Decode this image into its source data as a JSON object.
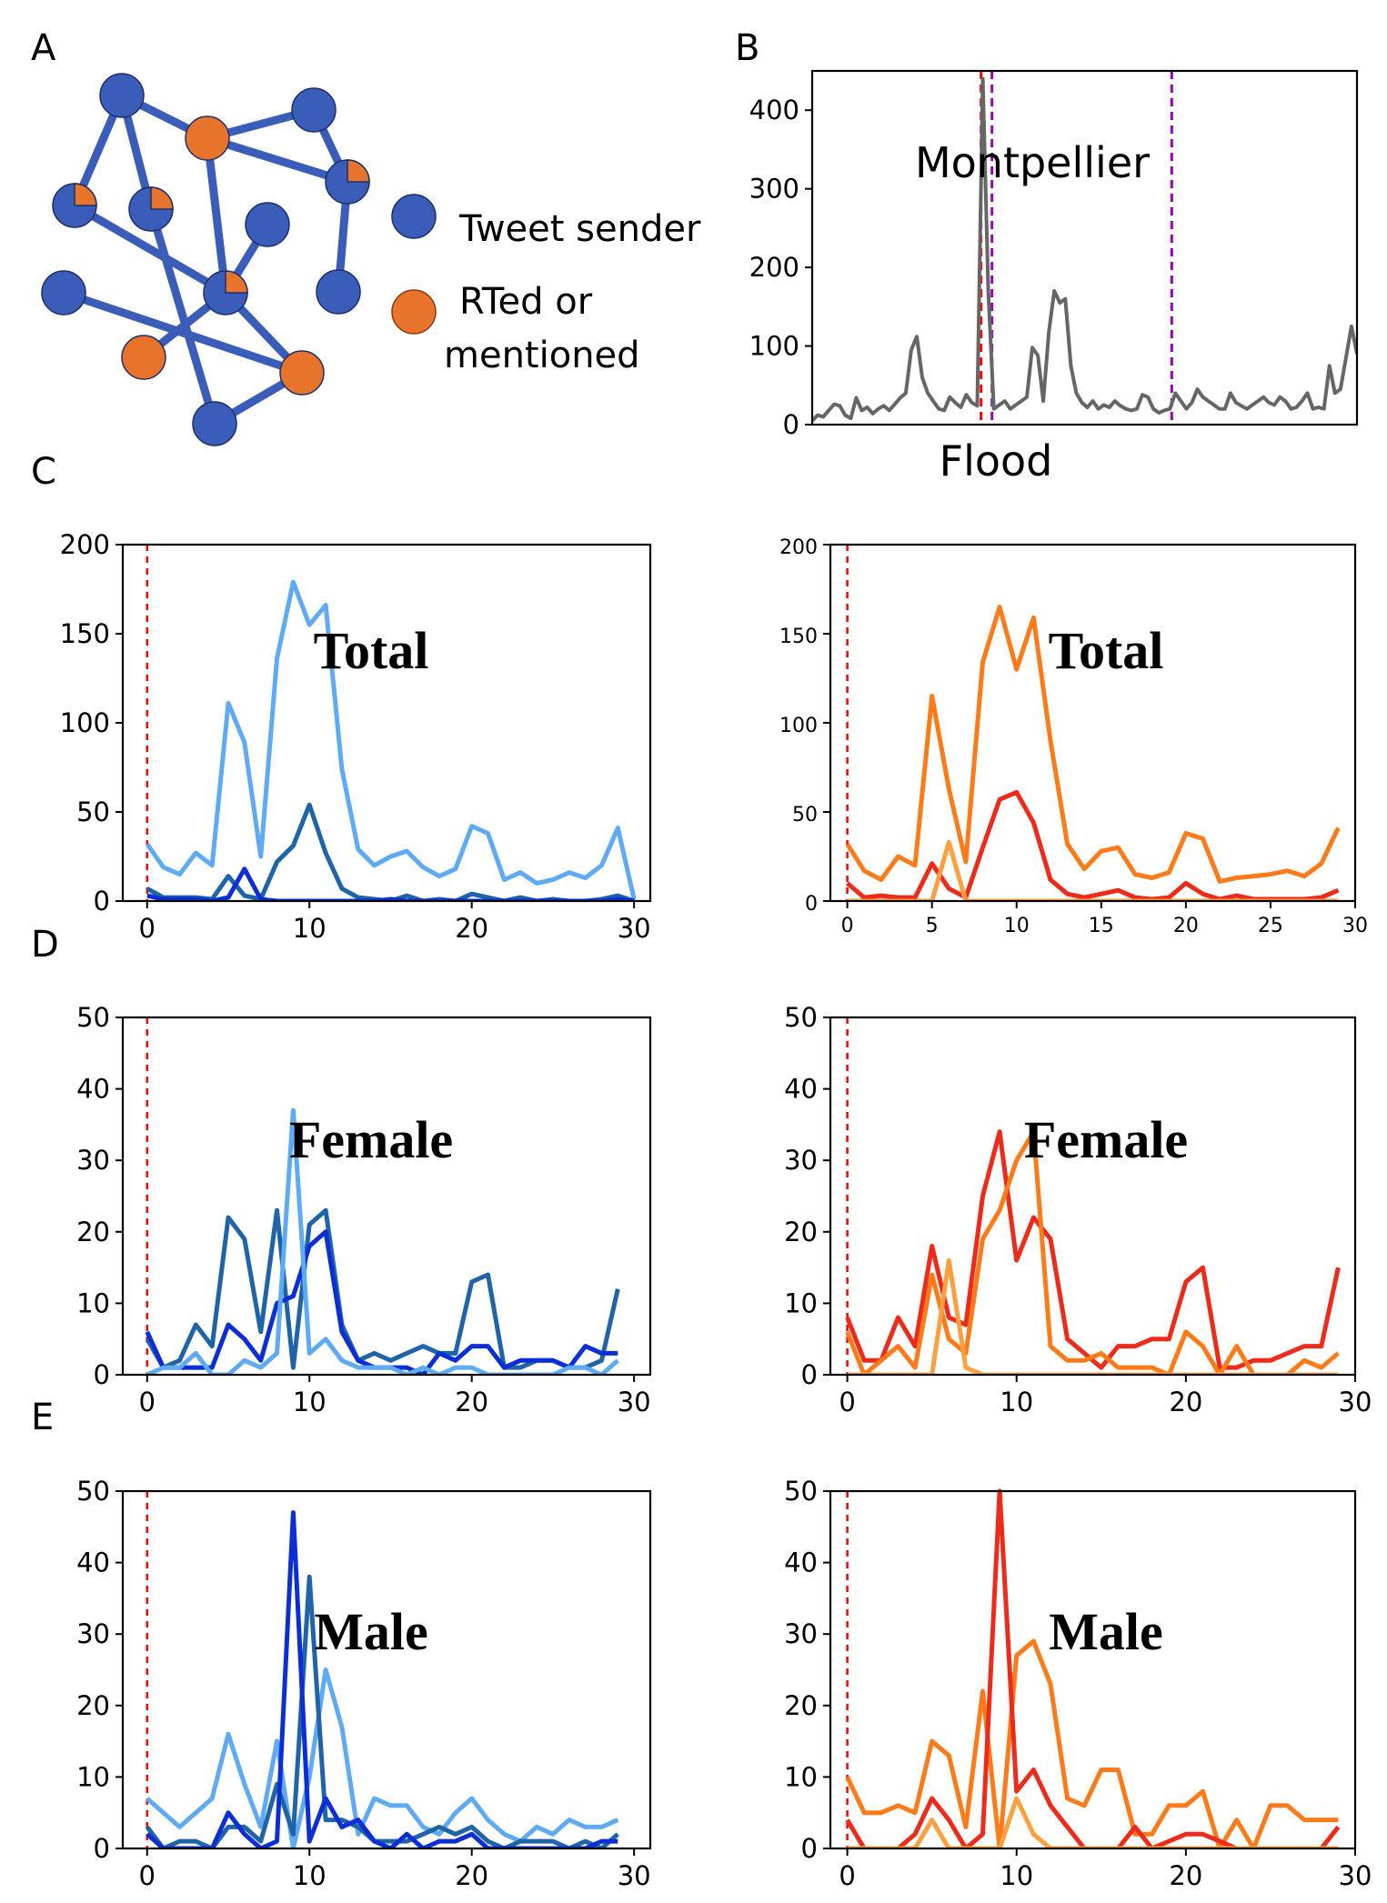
{
  "panel_letters": {
    "a": "A",
    "b": "B",
    "c": "C",
    "d": "D",
    "e": "E"
  },
  "legend": {
    "sender_label": "Tweet sender",
    "rted_line1": "RTed or",
    "rted_line2": "mentioned",
    "sender_color": "#3a5dba",
    "rted_color": "#e8732a"
  },
  "colors": {
    "blue_light": "#5eaaf5",
    "blue_mid": "#1f64a8",
    "blue_dark": "#0c2ed6",
    "orange_mid": "#ff7a18",
    "red": "#ee2a1a",
    "orange_light": "#ffa040",
    "event_red": "#ff0000",
    "event_purple": "#9900bb",
    "gray": "#666666"
  },
  "chart_data": [
    {
      "id": "B",
      "type": "line",
      "title": "",
      "annotation": "Montpellier",
      "xlabel": "Flood",
      "ylabel": "",
      "ylim": [
        0,
        450
      ],
      "yticks": [
        0,
        100,
        200,
        300,
        400
      ],
      "xlim": [
        0,
        100
      ],
      "event_lines": [
        {
          "x": 31,
          "color": "red"
        },
        {
          "x": 33,
          "color": "purple"
        },
        {
          "x": 66,
          "color": "purple"
        }
      ],
      "series": [
        {
          "values": [
            5,
            12,
            10,
            18,
            26,
            24,
            12,
            8,
            34,
            18,
            22,
            14,
            20,
            24,
            18,
            26,
            34,
            40,
            95,
            112,
            60,
            40,
            30,
            20,
            18,
            35,
            28,
            22,
            38,
            28,
            24,
            440,
            170,
            20,
            25,
            30,
            20,
            25,
            30,
            35,
            98,
            88,
            30,
            118,
            170,
            155,
            160,
            75,
            40,
            28,
            22,
            30,
            20,
            25,
            22,
            30,
            24,
            20,
            18,
            20,
            38,
            35,
            20,
            15,
            18,
            20,
            40,
            30,
            20,
            28,
            45,
            35,
            30,
            25,
            20,
            20,
            40,
            28,
            24,
            20,
            25,
            30,
            35,
            28,
            25,
            35,
            30,
            20,
            22,
            30,
            40,
            20,
            22,
            20,
            75,
            40,
            45,
            85,
            125,
            90
          ]
        }
      ]
    },
    {
      "id": "C-left",
      "type": "line",
      "title": "",
      "annotation": "Total",
      "xlim": [
        -1.5,
        31
      ],
      "ylim": [
        0,
        200
      ],
      "xticks": [
        0,
        10,
        20,
        30
      ],
      "yticks": [
        0,
        50,
        100,
        150,
        200
      ],
      "x": [
        0,
        1,
        2,
        3,
        4,
        5,
        6,
        7,
        8,
        9,
        10,
        11,
        12,
        13,
        14,
        15,
        16,
        17,
        18,
        19,
        20,
        21,
        22,
        23,
        24,
        25,
        26,
        27,
        28,
        29,
        30
      ],
      "series": [
        {
          "color_key": "blue_light",
          "values": [
            32,
            19,
            15,
            27,
            20,
            111,
            89,
            25,
            136,
            179,
            155,
            166,
            74,
            29,
            20,
            25,
            28,
            19,
            14,
            18,
            42,
            38,
            12,
            16,
            10,
            12,
            16,
            13,
            20,
            41,
            1
          ]
        },
        {
          "color_key": "blue_mid",
          "values": [
            7,
            2,
            2,
            2,
            1,
            14,
            3,
            1,
            22,
            31,
            54,
            27,
            7,
            2,
            1,
            0,
            3,
            0,
            1,
            0,
            4,
            2,
            0,
            2,
            0,
            1,
            0,
            0,
            1,
            3,
            0
          ]
        },
        {
          "color_key": "blue_dark",
          "values": [
            3,
            1,
            1,
            1,
            0,
            2,
            18,
            1,
            0,
            0,
            0,
            0,
            0,
            0,
            0,
            1,
            0,
            0,
            0,
            0,
            0,
            0,
            0,
            0,
            0,
            0,
            0,
            0,
            0,
            1,
            0
          ]
        }
      ]
    },
    {
      "id": "C-right",
      "type": "line",
      "title": "",
      "annotation": "Total",
      "xlim": [
        -1,
        30
      ],
      "ylim": [
        0,
        200
      ],
      "xticks": [
        0,
        5,
        10,
        15,
        20,
        25,
        30
      ],
      "yticks": [
        0,
        50,
        100,
        150,
        200
      ],
      "x": [
        0,
        1,
        2,
        3,
        4,
        5,
        6,
        7,
        8,
        9,
        10,
        11,
        12,
        13,
        14,
        15,
        16,
        17,
        18,
        19,
        20,
        21,
        22,
        23,
        24,
        25,
        26,
        27,
        28,
        29
      ],
      "series": [
        {
          "color_key": "orange_mid",
          "values": [
            32,
            17,
            12,
            25,
            20,
            115,
            63,
            22,
            134,
            165,
            130,
            159,
            90,
            32,
            18,
            28,
            30,
            15,
            13,
            16,
            38,
            35,
            11,
            13,
            14,
            15,
            17,
            14,
            21,
            41
          ]
        },
        {
          "color_key": "red",
          "values": [
            10,
            2,
            3,
            2,
            2,
            21,
            7,
            2,
            30,
            57,
            61,
            44,
            12,
            4,
            2,
            4,
            6,
            2,
            1,
            2,
            10,
            4,
            1,
            3,
            1,
            1,
            1,
            1,
            2,
            6
          ]
        },
        {
          "color_key": "orange_light",
          "values": [
            0,
            0,
            0,
            0,
            0,
            0,
            33,
            0,
            0,
            0,
            0,
            0,
            0,
            0,
            0,
            0,
            0,
            0,
            0,
            0,
            0,
            0,
            0,
            0,
            0,
            0,
            0,
            0,
            0,
            0
          ]
        }
      ]
    },
    {
      "id": "D-left",
      "type": "line",
      "title": "",
      "annotation": "Female",
      "xlim": [
        -1.5,
        31
      ],
      "ylim": [
        0,
        50
      ],
      "xticks": [
        0,
        10,
        20,
        30
      ],
      "yticks": [
        0,
        10,
        20,
        30,
        40,
        50
      ],
      "x": [
        0,
        1,
        2,
        3,
        4,
        5,
        6,
        7,
        8,
        9,
        10,
        11,
        12,
        13,
        14,
        15,
        16,
        17,
        18,
        19,
        20,
        21,
        22,
        23,
        24,
        25,
        26,
        27,
        28,
        29
      ],
      "series": [
        {
          "color_key": "blue_mid",
          "values": [
            5,
            1,
            2,
            7,
            4,
            22,
            19,
            6,
            23,
            1,
            21,
            23,
            7,
            2,
            3,
            2,
            3,
            4,
            3,
            3,
            13,
            14,
            1,
            1,
            2,
            2,
            1,
            1,
            2,
            12
          ]
        },
        {
          "color_key": "blue_dark",
          "values": [
            6,
            1,
            1,
            1,
            1,
            7,
            5,
            2,
            10,
            11,
            18,
            20,
            6,
            2,
            1,
            1,
            1,
            0,
            3,
            2,
            4,
            4,
            1,
            2,
            2,
            2,
            1,
            4,
            3,
            3
          ]
        },
        {
          "color_key": "blue_light",
          "values": [
            0,
            1,
            1,
            3,
            0,
            0,
            2,
            1,
            3,
            37,
            3,
            5,
            2,
            1,
            1,
            1,
            0,
            1,
            0,
            1,
            1,
            0,
            0,
            0,
            0,
            0,
            1,
            1,
            0,
            2
          ]
        }
      ]
    },
    {
      "id": "D-right",
      "type": "line",
      "title": "",
      "annotation": "Female",
      "xlim": [
        -1,
        30
      ],
      "ylim": [
        0,
        50
      ],
      "xticks": [
        0,
        10,
        20,
        30
      ],
      "yticks": [
        0,
        10,
        20,
        30,
        40,
        50
      ],
      "x": [
        0,
        1,
        2,
        3,
        4,
        5,
        6,
        7,
        8,
        9,
        10,
        11,
        12,
        13,
        14,
        15,
        16,
        17,
        18,
        19,
        20,
        21,
        22,
        23,
        24,
        25,
        26,
        27,
        28,
        29
      ],
      "series": [
        {
          "color_key": "red",
          "values": [
            8,
            2,
            2,
            8,
            4,
            18,
            8,
            7,
            25,
            34,
            16,
            22,
            19,
            5,
            3,
            1,
            4,
            4,
            5,
            5,
            13,
            15,
            1,
            1,
            2,
            2,
            3,
            4,
            4,
            15
          ]
        },
        {
          "color_key": "orange_mid",
          "values": [
            6,
            0,
            2,
            4,
            1,
            14,
            5,
            3,
            19,
            23,
            30,
            34,
            4,
            2,
            2,
            3,
            1,
            1,
            1,
            0,
            6,
            4,
            0,
            4,
            0,
            0,
            0,
            2,
            1,
            3
          ]
        },
        {
          "color_key": "orange_light",
          "values": [
            0,
            0,
            0,
            0,
            0,
            0,
            16,
            1,
            0,
            0,
            0,
            0,
            0,
            0,
            0,
            0,
            0,
            0,
            0,
            0,
            0,
            0,
            0,
            0,
            0,
            0,
            0,
            0,
            0,
            0
          ]
        }
      ]
    },
    {
      "id": "E-left",
      "type": "line",
      "title": "",
      "annotation": "Male",
      "xlim": [
        -1.5,
        31
      ],
      "ylim": [
        0,
        50
      ],
      "xticks": [
        0,
        10,
        20,
        30
      ],
      "yticks": [
        0,
        10,
        20,
        30,
        40,
        50
      ],
      "x": [
        0,
        1,
        2,
        3,
        4,
        5,
        6,
        7,
        8,
        9,
        10,
        11,
        12,
        13,
        14,
        15,
        16,
        17,
        18,
        19,
        20,
        21,
        22,
        23,
        24,
        25,
        26,
        27,
        28,
        29
      ],
      "series": [
        {
          "color_key": "blue_light",
          "values": [
            7,
            5,
            3,
            5,
            7,
            16,
            9,
            3,
            15,
            0,
            10,
            25,
            17,
            2,
            7,
            6,
            6,
            3,
            2,
            5,
            7,
            4,
            2,
            1,
            3,
            2,
            4,
            3,
            3,
            4
          ]
        },
        {
          "color_key": "blue_mid",
          "values": [
            3,
            0,
            1,
            1,
            0,
            3,
            3,
            1,
            9,
            2,
            38,
            4,
            4,
            3,
            1,
            1,
            1,
            2,
            3,
            2,
            3,
            1,
            0,
            1,
            1,
            1,
            0,
            1,
            0,
            2
          ]
        },
        {
          "color_key": "blue_dark",
          "values": [
            2,
            0,
            0,
            0,
            0,
            5,
            2,
            0,
            1,
            47,
            1,
            7,
            3,
            4,
            1,
            0,
            2,
            0,
            1,
            1,
            2,
            0,
            0,
            0,
            0,
            0,
            0,
            0,
            1,
            1
          ]
        }
      ]
    },
    {
      "id": "E-right",
      "type": "line",
      "title": "",
      "annotation": "Male",
      "xlim": [
        -1,
        30
      ],
      "ylim": [
        0,
        50
      ],
      "xticks": [
        0,
        10,
        20,
        30
      ],
      "yticks": [
        0,
        10,
        20,
        30,
        40,
        50
      ],
      "x": [
        0,
        1,
        2,
        3,
        4,
        5,
        6,
        7,
        8,
        9,
        10,
        11,
        12,
        13,
        14,
        15,
        16,
        17,
        18,
        19,
        20,
        21,
        22,
        23,
        24,
        25,
        26,
        27,
        28,
        29
      ],
      "series": [
        {
          "color_key": "orange_mid",
          "values": [
            10,
            5,
            5,
            6,
            5,
            15,
            13,
            3,
            22,
            0,
            27,
            29,
            23,
            7,
            6,
            11,
            11,
            2,
            2,
            6,
            6,
            8,
            0,
            4,
            0,
            6,
            6,
            4,
            4,
            4
          ]
        },
        {
          "color_key": "red",
          "values": [
            4,
            0,
            0,
            0,
            2,
            7,
            4,
            0,
            2,
            52,
            8,
            11,
            6,
            3,
            0,
            0,
            0,
            3,
            0,
            1,
            2,
            2,
            1,
            0,
            0,
            0,
            0,
            0,
            0,
            3
          ]
        },
        {
          "color_key": "orange_light",
          "values": [
            0,
            0,
            0,
            0,
            0,
            4,
            0,
            0,
            0,
            0,
            7,
            2,
            0,
            0,
            0,
            0,
            0,
            0,
            0,
            0,
            0,
            0,
            0,
            0,
            0,
            0,
            0,
            0,
            0,
            0
          ]
        }
      ]
    }
  ]
}
